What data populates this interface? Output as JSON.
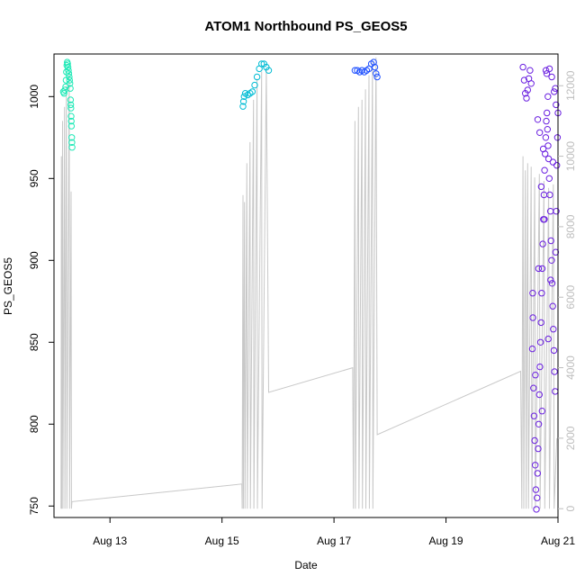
{
  "chart_data": {
    "type": "scatter",
    "title": "ATOM1 Northbound PS_GEOS5",
    "xlabel": "Date",
    "ylabel": "PS_GEOS5",
    "xlim": [
      "2016-08-12 00:00",
      "2016-08-21 00:00"
    ],
    "ylim": [
      743,
      1026
    ],
    "y2lim": [
      -250,
      12900
    ],
    "xticks": [
      "Aug 13",
      "Aug 15",
      "Aug 17",
      "Aug 19",
      "Aug 21"
    ],
    "xtick_dates": [
      "2016-08-13",
      "2016-08-15",
      "2016-08-17",
      "2016-08-19",
      "2016-08-21"
    ],
    "yticks": [
      750,
      800,
      850,
      900,
      950,
      1000
    ],
    "y2ticks": [
      0,
      2000,
      4000,
      6000,
      8000,
      10000,
      12000
    ],
    "grid": false,
    "legend": "none",
    "series": [
      {
        "color": "#1de9b6",
        "points": [
          [
            "2016-08-12 04:00",
            1003
          ],
          [
            "2016-08-12 04:20",
            1002
          ],
          [
            "2016-08-12 04:40",
            1004
          ],
          [
            "2016-08-12 05:00",
            1006
          ],
          [
            "2016-08-12 05:10",
            1010
          ],
          [
            "2016-08-12 05:20",
            1015
          ],
          [
            "2016-08-12 05:30",
            1019
          ],
          [
            "2016-08-12 05:40",
            1021
          ],
          [
            "2016-08-12 05:50",
            1020
          ],
          [
            "2016-08-12 06:00",
            1018
          ],
          [
            "2016-08-12 06:10",
            1016
          ],
          [
            "2016-08-12 06:20",
            1014
          ],
          [
            "2016-08-12 06:30",
            1012
          ],
          [
            "2016-08-12 06:40",
            1010
          ],
          [
            "2016-08-12 06:50",
            1008
          ],
          [
            "2016-08-12 07:00",
            1005
          ],
          [
            "2016-08-12 07:05",
            998
          ],
          [
            "2016-08-12 07:10",
            995
          ],
          [
            "2016-08-12 07:15",
            993
          ],
          [
            "2016-08-12 07:20",
            988
          ],
          [
            "2016-08-12 07:25",
            985
          ],
          [
            "2016-08-12 07:30",
            982
          ],
          [
            "2016-08-12 07:35",
            975
          ],
          [
            "2016-08-12 07:40",
            972
          ],
          [
            "2016-08-12 07:45",
            969
          ]
        ]
      },
      {
        "color": "#00bcd4",
        "points": [
          [
            "2016-08-15 09:00",
            994
          ],
          [
            "2016-08-15 09:15",
            997
          ],
          [
            "2016-08-15 09:30",
            1000
          ],
          [
            "2016-08-15 10:00",
            1002
          ],
          [
            "2016-08-15 11:00",
            1001
          ],
          [
            "2016-08-15 12:00",
            1002
          ],
          [
            "2016-08-15 13:00",
            1003
          ],
          [
            "2016-08-15 14:00",
            1007
          ],
          [
            "2016-08-15 15:00",
            1012
          ],
          [
            "2016-08-15 16:00",
            1017
          ],
          [
            "2016-08-15 17:00",
            1020
          ],
          [
            "2016-08-15 18:00",
            1020
          ],
          [
            "2016-08-15 19:00",
            1018
          ],
          [
            "2016-08-15 20:00",
            1016
          ]
        ]
      },
      {
        "color": "#1e50ff",
        "points": [
          [
            "2016-08-17 09:00",
            1016
          ],
          [
            "2016-08-17 10:00",
            1016
          ],
          [
            "2016-08-17 11:00",
            1015
          ],
          [
            "2016-08-17 12:00",
            1016
          ],
          [
            "2016-08-17 13:00",
            1015
          ],
          [
            "2016-08-17 14:00",
            1016
          ],
          [
            "2016-08-17 15:00",
            1017
          ],
          [
            "2016-08-17 16:00",
            1020
          ],
          [
            "2016-08-17 17:00",
            1021
          ],
          [
            "2016-08-17 17:30",
            1018
          ],
          [
            "2016-08-17 18:00",
            1014
          ],
          [
            "2016-08-17 18:30",
            1012
          ]
        ]
      },
      {
        "color": "#6a1fe0",
        "points": [
          [
            "2016-08-20 09:00",
            1018
          ],
          [
            "2016-08-20 09:30",
            1010
          ],
          [
            "2016-08-20 10:00",
            1002
          ],
          [
            "2016-08-20 10:30",
            999
          ],
          [
            "2016-08-20 11:00",
            1004
          ],
          [
            "2016-08-20 11:30",
            1011
          ],
          [
            "2016-08-20 12:00",
            1016
          ],
          [
            "2016-08-20 12:30",
            1008
          ],
          [
            "2016-08-20 13:00",
            846
          ],
          [
            "2016-08-20 13:15",
            865
          ],
          [
            "2016-08-20 13:30",
            822
          ],
          [
            "2016-08-20 13:45",
            805
          ],
          [
            "2016-08-20 14:00",
            790
          ],
          [
            "2016-08-20 14:15",
            775
          ],
          [
            "2016-08-20 14:30",
            760
          ],
          [
            "2016-08-20 14:45",
            748
          ],
          [
            "2016-08-20 15:00",
            755
          ],
          [
            "2016-08-20 15:15",
            770
          ],
          [
            "2016-08-20 15:30",
            785
          ],
          [
            "2016-08-20 15:45",
            800
          ],
          [
            "2016-08-20 16:00",
            818
          ],
          [
            "2016-08-20 16:15",
            835
          ],
          [
            "2016-08-20 16:30",
            850
          ],
          [
            "2016-08-20 16:45",
            862
          ],
          [
            "2016-08-20 17:00",
            880
          ],
          [
            "2016-08-20 17:15",
            895
          ],
          [
            "2016-08-20 17:30",
            910
          ],
          [
            "2016-08-20 17:45",
            925
          ],
          [
            "2016-08-20 18:00",
            940
          ],
          [
            "2016-08-20 18:15",
            955
          ],
          [
            "2016-08-20 18:30",
            965
          ],
          [
            "2016-08-20 18:45",
            975
          ],
          [
            "2016-08-20 19:00",
            985
          ],
          [
            "2016-08-20 19:15",
            990
          ],
          [
            "2016-08-20 19:30",
            980
          ],
          [
            "2016-08-20 19:45",
            970
          ],
          [
            "2016-08-20 20:00",
            962
          ],
          [
            "2016-08-20 20:15",
            950
          ],
          [
            "2016-08-20 20:30",
            940
          ],
          [
            "2016-08-20 20:45",
            930
          ],
          [
            "2016-08-20 21:00",
            912
          ],
          [
            "2016-08-20 21:15",
            900
          ],
          [
            "2016-08-20 21:30",
            886
          ],
          [
            "2016-08-20 21:45",
            872
          ],
          [
            "2016-08-20 22:00",
            858
          ],
          [
            "2016-08-20 22:15",
            845
          ],
          [
            "2016-08-20 22:30",
            832
          ],
          [
            "2016-08-20 22:45",
            820
          ],
          [
            "2016-08-20 23:00",
            905
          ],
          [
            "2016-08-20 23:15",
            930
          ],
          [
            "2016-08-20 23:30",
            958
          ],
          [
            "2016-08-20 23:45",
            975
          ],
          [
            "2016-08-21 00:00",
            990
          ],
          [
            "2016-08-20 13:10",
            880
          ],
          [
            "2016-08-20 14:20",
            830
          ],
          [
            "2016-08-20 15:40",
            895
          ],
          [
            "2016-08-20 16:50",
            945
          ],
          [
            "2016-08-20 18:10",
            925
          ],
          [
            "2016-08-20 19:40",
            1000
          ],
          [
            "2016-08-20 20:50",
            888
          ],
          [
            "2016-08-20 21:50",
            960
          ],
          [
            "2016-08-20 22:50",
            1005
          ],
          [
            "2016-08-20 15:20",
            986
          ],
          [
            "2016-08-20 16:10",
            978
          ],
          [
            "2016-08-20 17:40",
            968
          ],
          [
            "2016-08-20 18:50",
            1016
          ],
          [
            "2016-08-20 19:10",
            1014
          ],
          [
            "2016-08-20 20:20",
            1017
          ],
          [
            "2016-08-20 21:20",
            1012
          ],
          [
            "2016-08-20 22:20",
            1003
          ],
          [
            "2016-08-20 23:10",
            995
          ],
          [
            "2016-08-20 17:10",
            808
          ],
          [
            "2016-08-20 19:50",
            852
          ]
        ]
      }
    ],
    "altitude_series": {
      "color": "#c8c8c8",
      "points": [
        [
          "2016-08-12 03:00",
          0
        ],
        [
          "2016-08-12 03:10",
          10000
        ],
        [
          "2016-08-12 03:20",
          0
        ],
        [
          "2016-08-12 03:40",
          11000
        ],
        [
          "2016-08-12 03:50",
          0
        ],
        [
          "2016-08-12 04:30",
          11400
        ],
        [
          "2016-08-12 04:40",
          0
        ],
        [
          "2016-08-12 05:20",
          12000
        ],
        [
          "2016-08-12 05:30",
          0
        ],
        [
          "2016-08-12 06:30",
          12400
        ],
        [
          "2016-08-12 06:40",
          0
        ],
        [
          "2016-08-12 07:20",
          9000
        ],
        [
          "2016-08-12 07:30",
          0
        ],
        [
          "2016-08-12 07:40",
          200
        ],
        [
          "2016-08-15 08:30",
          700
        ],
        [
          "2016-08-15 08:40",
          0
        ],
        [
          "2016-08-15 09:00",
          8900
        ],
        [
          "2016-08-15 09:10",
          0
        ],
        [
          "2016-08-15 09:40",
          8700
        ],
        [
          "2016-08-15 09:50",
          0
        ],
        [
          "2016-08-15 10:40",
          9800
        ],
        [
          "2016-08-15 10:50",
          0
        ],
        [
          "2016-08-15 12:00",
          10400
        ],
        [
          "2016-08-15 12:10",
          0
        ],
        [
          "2016-08-15 13:30",
          11600
        ],
        [
          "2016-08-15 13:40",
          0
        ],
        [
          "2016-08-15 15:00",
          12200
        ],
        [
          "2016-08-15 15:10",
          0
        ],
        [
          "2016-08-15 17:00",
          12400
        ],
        [
          "2016-08-15 17:10",
          0
        ],
        [
          "2016-08-15 19:00",
          12500
        ],
        [
          "2016-08-15 20:00",
          3300
        ],
        [
          "2016-08-17 08:00",
          4000
        ],
        [
          "2016-08-17 08:20",
          0
        ],
        [
          "2016-08-17 09:00",
          11000
        ],
        [
          "2016-08-17 09:10",
          0
        ],
        [
          "2016-08-17 10:30",
          11400
        ],
        [
          "2016-08-17 10:40",
          0
        ],
        [
          "2016-08-17 12:00",
          11600
        ],
        [
          "2016-08-17 12:10",
          0
        ],
        [
          "2016-08-17 13:30",
          11900
        ],
        [
          "2016-08-17 13:40",
          0
        ],
        [
          "2016-08-17 15:00",
          12300
        ],
        [
          "2016-08-17 15:10",
          0
        ],
        [
          "2016-08-17 16:30",
          12700
        ],
        [
          "2016-08-17 16:40",
          0
        ],
        [
          "2016-08-17 18:00",
          12800
        ],
        [
          "2016-08-17 18:30",
          2100
        ],
        [
          "2016-08-20 08:00",
          3900
        ],
        [
          "2016-08-20 08:30",
          0
        ],
        [
          "2016-08-20 09:00",
          10000
        ],
        [
          "2016-08-20 09:20",
          0
        ],
        [
          "2016-08-20 10:00",
          9600
        ],
        [
          "2016-08-20 10:20",
          0
        ],
        [
          "2016-08-20 11:00",
          9800
        ],
        [
          "2016-08-20 11:20",
          0
        ],
        [
          "2016-08-20 12:30",
          9700
        ],
        [
          "2016-08-20 12:50",
          0
        ],
        [
          "2016-08-20 14:00",
          9400
        ],
        [
          "2016-08-20 14:20",
          0
        ],
        [
          "2016-08-20 16:00",
          9500
        ],
        [
          "2016-08-20 16:20",
          0
        ],
        [
          "2016-08-20 18:00",
          9300
        ],
        [
          "2016-08-20 18:20",
          0
        ],
        [
          "2016-08-20 20:00",
          9100
        ],
        [
          "2016-08-20 20:20",
          0
        ],
        [
          "2016-08-20 22:00",
          9200
        ],
        [
          "2016-08-20 22:20",
          0
        ],
        [
          "2016-08-20 23:30",
          2000
        ]
      ]
    }
  }
}
